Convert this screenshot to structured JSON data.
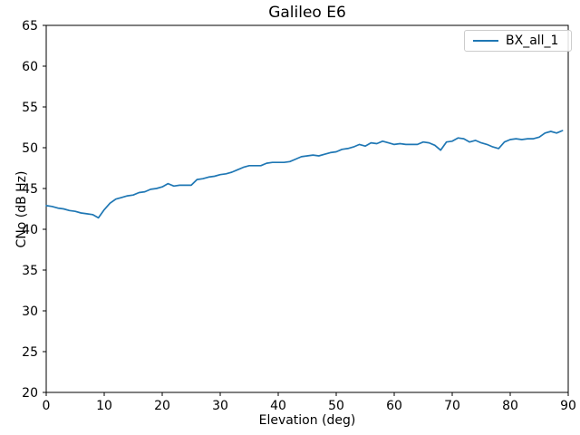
{
  "window": {
    "background": "#ffffff"
  },
  "chart_data": {
    "type": "line",
    "title": "Galileo E6",
    "xlabel": "Elevation (deg)",
    "ylabel": "CNo (dB Hz)",
    "xlim": [
      0,
      90
    ],
    "ylim": [
      20,
      65
    ],
    "xticks": [
      0,
      10,
      20,
      30,
      40,
      50,
      60,
      70,
      80,
      90
    ],
    "yticks": [
      20,
      25,
      30,
      35,
      40,
      45,
      50,
      55,
      60,
      65
    ],
    "grid": false,
    "legend_position": "upper right",
    "axis_color": "#000000",
    "x": [
      0,
      1,
      2,
      3,
      4,
      5,
      6,
      7,
      8,
      9,
      10,
      11,
      12,
      13,
      14,
      15,
      16,
      17,
      18,
      19,
      20,
      21,
      22,
      23,
      24,
      25,
      26,
      27,
      28,
      29,
      30,
      31,
      32,
      33,
      34,
      35,
      36,
      37,
      38,
      39,
      40,
      41,
      42,
      43,
      44,
      45,
      46,
      47,
      48,
      49,
      50,
      51,
      52,
      53,
      54,
      55,
      56,
      57,
      58,
      59,
      60,
      61,
      62,
      63,
      64,
      65,
      66,
      67,
      68,
      69,
      70,
      71,
      72,
      73,
      74,
      75,
      76,
      77,
      78,
      79,
      80,
      81,
      82,
      83,
      84,
      85,
      86,
      87,
      88,
      89
    ],
    "series": [
      {
        "name": "BX_all_1",
        "color": "#1f77b4",
        "values": [
          42.9,
          42.8,
          42.6,
          42.5,
          42.3,
          42.2,
          42.0,
          41.9,
          41.8,
          41.4,
          42.4,
          43.2,
          43.7,
          43.9,
          44.1,
          44.2,
          44.5,
          44.6,
          44.9,
          45.0,
          45.2,
          45.6,
          45.3,
          45.4,
          45.4,
          45.4,
          46.1,
          46.2,
          46.4,
          46.5,
          46.7,
          46.8,
          47.0,
          47.3,
          47.6,
          47.8,
          47.8,
          47.8,
          48.1,
          48.2,
          48.2,
          48.2,
          48.3,
          48.6,
          48.9,
          49.0,
          49.1,
          49.0,
          49.2,
          49.4,
          49.5,
          49.8,
          49.9,
          50.1,
          50.4,
          50.2,
          50.6,
          50.5,
          50.8,
          50.6,
          50.4,
          50.5,
          50.4,
          50.4,
          50.4,
          50.7,
          50.6,
          50.3,
          49.7,
          50.7,
          50.8,
          51.2,
          51.1,
          50.7,
          50.9,
          50.6,
          50.4,
          50.1,
          49.9,
          50.7,
          51.0,
          51.1,
          51.0,
          51.1,
          51.1,
          51.3,
          51.8,
          52.0,
          51.8,
          52.1
        ]
      }
    ]
  },
  "legend": {
    "entries": [
      {
        "label": "BX_all_1",
        "color": "#1f77b4"
      }
    ]
  }
}
